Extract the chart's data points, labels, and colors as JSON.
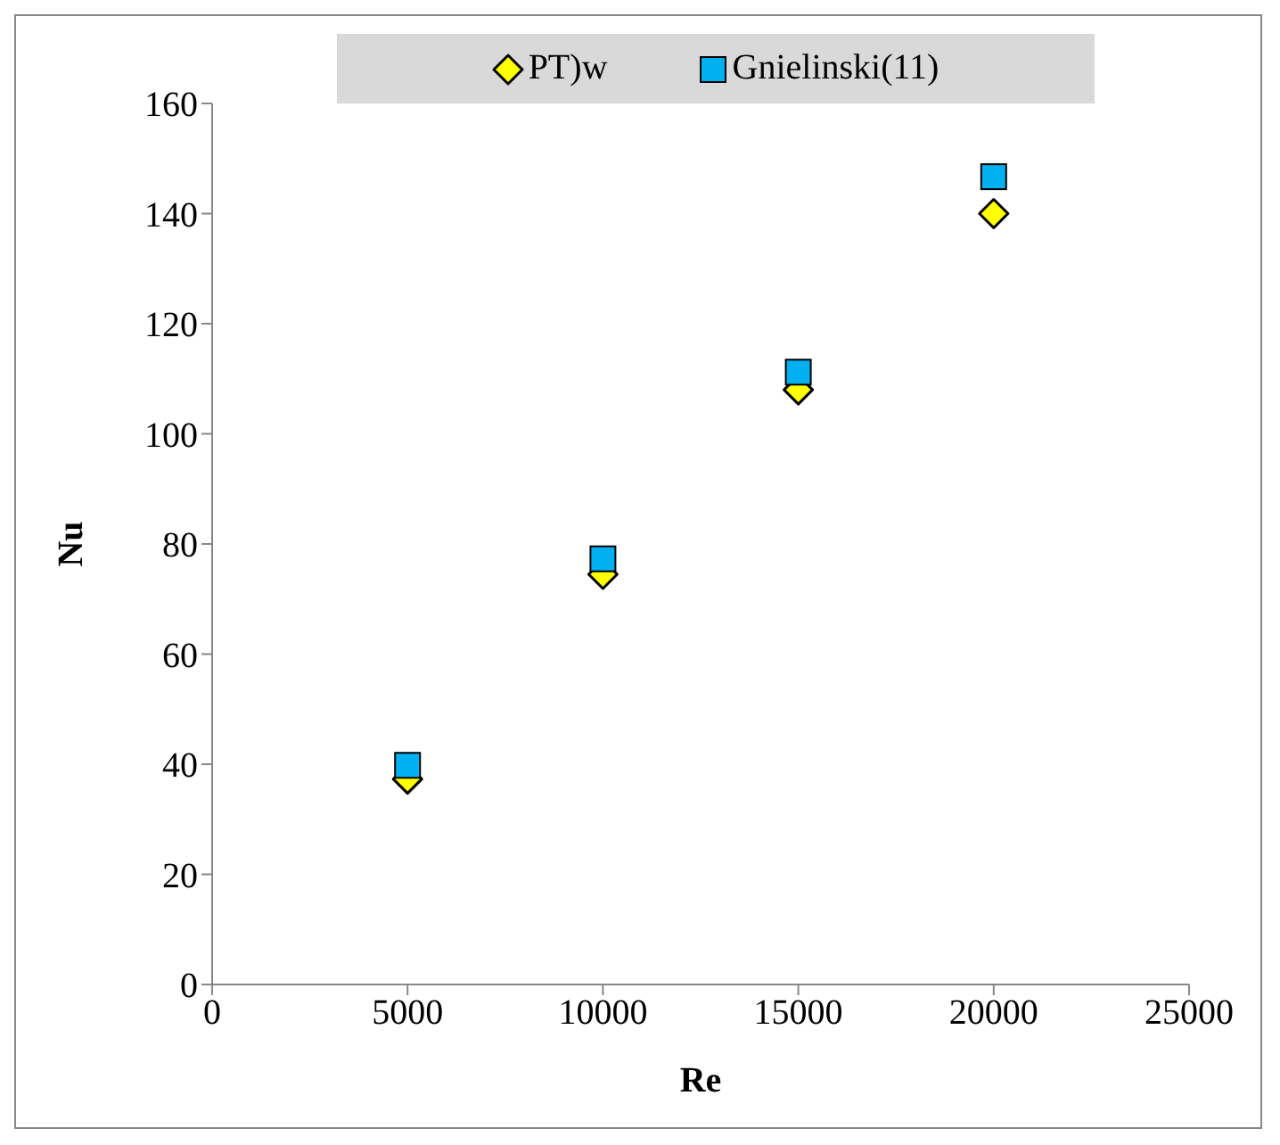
{
  "chart_data": {
    "type": "scatter",
    "xlabel": "Re",
    "ylabel": "Nu",
    "x": [
      5000,
      10000,
      15000,
      20000
    ],
    "series": [
      {
        "name": "PT)w",
        "color": "#ffff00",
        "marker": "diamond",
        "values": [
          37.3,
          74.5,
          108,
          140
        ]
      },
      {
        "name": "Gnielinski(11)",
        "color": "#00b0f0",
        "marker": "square",
        "values": [
          39.8,
          77.3,
          111.2,
          146.7
        ]
      }
    ],
    "xlim": [
      0,
      25000
    ],
    "xticks": [
      0,
      5000,
      10000,
      15000,
      20000,
      25000
    ],
    "ylim": [
      0,
      160
    ],
    "yticks": [
      0,
      20,
      40,
      60,
      80,
      100,
      120,
      140,
      160
    ],
    "grid": false,
    "legend": "top"
  }
}
